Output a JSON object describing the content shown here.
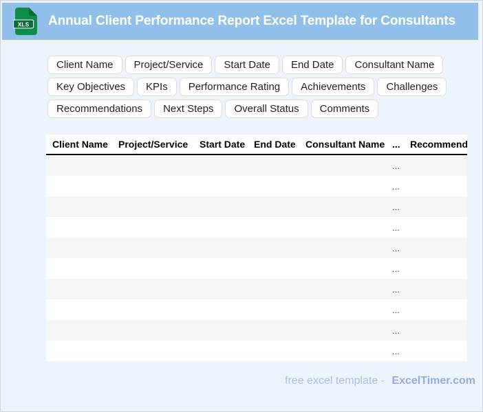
{
  "header": {
    "title": "Annual Client Performance Report Excel Template for Consultants",
    "icon_label": "XLS"
  },
  "chips": {
    "rows": [
      [
        "Client Name",
        "Project/Service",
        "Start Date",
        "End Date",
        "Consultant Name"
      ],
      [
        "Key Objectives",
        "KPIs",
        "Performance Rating",
        "Achievements",
        "Challenges"
      ],
      [
        "Recommendations",
        "Next Steps",
        "Overall Status",
        "Comments"
      ]
    ]
  },
  "table": {
    "columns": [
      "Client Name",
      "Project/Service",
      "Start Date",
      "End Date",
      "Consultant Name",
      "...",
      "Recommendations"
    ],
    "row_count": 10,
    "cell_placeholder": "...",
    "placeholder_column_index": 5
  },
  "footer": {
    "prefix": "free excel template -",
    "brand": "ExcelTimer.com"
  },
  "colors": {
    "header_bg": "#90C0EA",
    "header_text": "#FFFFFF",
    "page_bg": "#EDF3FB",
    "outer_border": "#CBD3DD",
    "table_bg": "#FFFFFF",
    "row_alt": "#F5F5F5",
    "chip_border": "#DCDCDC",
    "chip_text": "#1F2023",
    "footer_text": "#AFBDEA",
    "footer_brand": "#98A9DF",
    "icon_body": "#0E8C4A",
    "icon_band": "#0A6B38"
  }
}
